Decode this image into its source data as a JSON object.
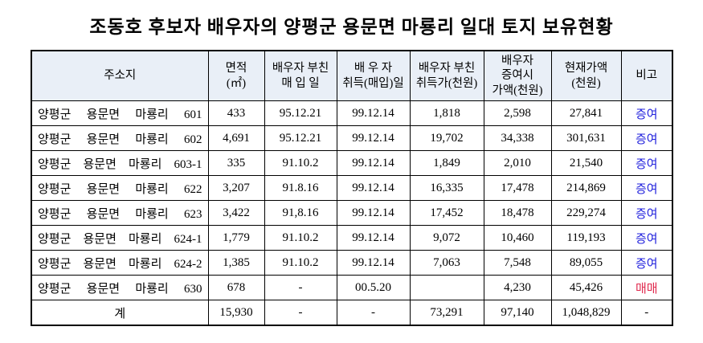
{
  "title": "조동호 후보자 배우자의 양평군 용문면 마룡리 일대 토지 보유현황",
  "colors": {
    "header_bg": "#e9eff7",
    "gift_blue": "#2222dd",
    "sale_red": "#e02a4e",
    "border": "#000000",
    "text": "#000000"
  },
  "table": {
    "headers": [
      {
        "key": "address",
        "lines": [
          "주소지"
        ]
      },
      {
        "key": "area",
        "lines": [
          "면적",
          "(㎡)"
        ]
      },
      {
        "key": "father-purchase-date",
        "lines": [
          "배우자 부친",
          "매 입 일"
        ]
      },
      {
        "key": "spouse-acquisition-date",
        "lines": [
          "배 우 자",
          "취득(매입)일"
        ]
      },
      {
        "key": "father-acquisition-price",
        "lines": [
          "배우자 부친",
          "취득가(천원)"
        ]
      },
      {
        "key": "spouse-gift-value",
        "lines": [
          "배우자",
          "증여시",
          "가액(천원)"
        ]
      },
      {
        "key": "current-value",
        "lines": [
          "현재가액",
          "(천원)"
        ]
      },
      {
        "key": "note",
        "lines": [
          "비고"
        ]
      }
    ],
    "rows": [
      {
        "cells": [
          "양평군 용문면 마룡리 601",
          "433",
          "95.12.21",
          "99.12.14",
          "1,818",
          "2,598",
          "27,841",
          "증여"
        ],
        "note_color": "blue",
        "is_total": false
      },
      {
        "cells": [
          "양평군 용문면 마룡리 602",
          "4,691",
          "95.12.21",
          "99.12.14",
          "19,702",
          "34,338",
          "301,631",
          "증여"
        ],
        "note_color": "blue",
        "is_total": false
      },
      {
        "cells": [
          "양평군 용문면 마룡리 603-1",
          "335",
          "91.10.2",
          "99.12.14",
          "1,849",
          "2,010",
          "21,540",
          "증여"
        ],
        "note_color": "blue",
        "is_total": false
      },
      {
        "cells": [
          "양평군 용문면 마룡리 622",
          "3,207",
          "91.8.16",
          "99.12.14",
          "16,335",
          "17,478",
          "214,869",
          "증여"
        ],
        "note_color": "blue",
        "is_total": false
      },
      {
        "cells": [
          "양평군 용문면 마룡리 623",
          "3,422",
          "91,8.16",
          "99.12.14",
          "17,452",
          "18,478",
          "229,274",
          "증여"
        ],
        "note_color": "blue",
        "is_total": false
      },
      {
        "cells": [
          "양평군 용문면 마룡리 624-1",
          "1,779",
          "91.10.2",
          "99.12.14",
          "9,072",
          "10,460",
          "119,193",
          "증여"
        ],
        "note_color": "blue",
        "is_total": false
      },
      {
        "cells": [
          "양평군 용문면 마룡리 624-2",
          "1,385",
          "91.10.2",
          "99.12.14",
          "7,063",
          "7,548",
          "89,055",
          "증여"
        ],
        "note_color": "blue",
        "is_total": false
      },
      {
        "cells": [
          "양평군 용문면 마룡리 630",
          "678",
          "-",
          "00.5.20",
          "",
          "4,230",
          "45,426",
          "매매"
        ],
        "note_color": "red",
        "is_total": false
      },
      {
        "cells": [
          "계",
          "15,930",
          "-",
          "-",
          "73,291",
          "97,140",
          "1,048,829",
          "-"
        ],
        "note_color": null,
        "is_total": true
      }
    ]
  }
}
